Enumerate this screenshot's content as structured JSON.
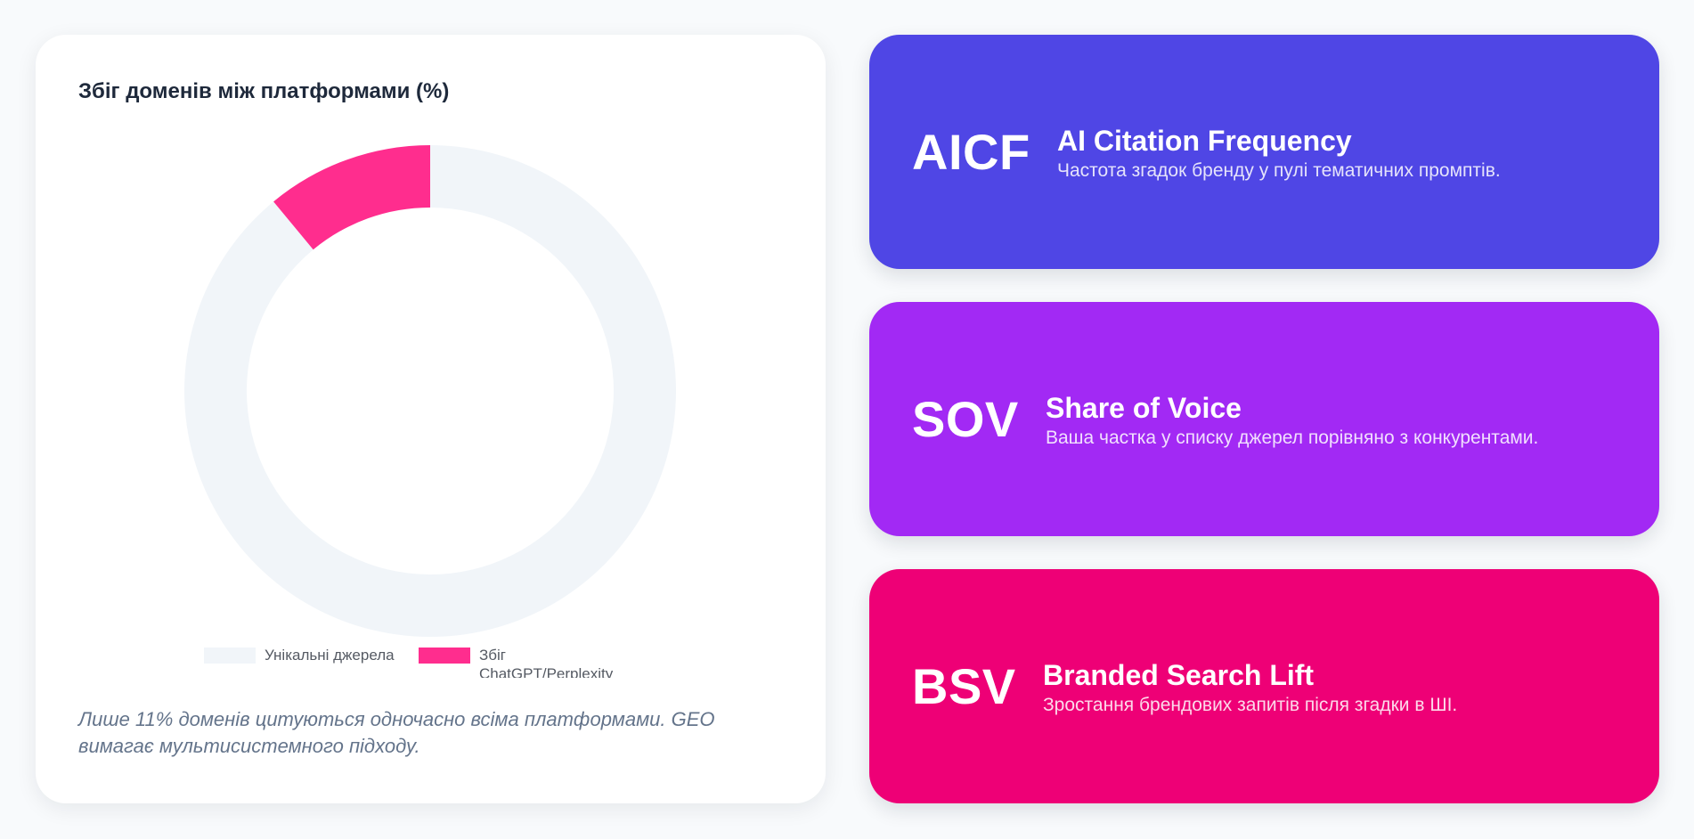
{
  "chart_data": {
    "type": "pie",
    "variant": "doughnut",
    "title": "Збіг доменів між платформами (%)",
    "labels": [
      "Унікальні джерела",
      "Збіг ChatGPT/Perplexity"
    ],
    "values": [
      89,
      11
    ],
    "colors": [
      "#f1f5f9",
      "#ff2d8e"
    ],
    "legend_position": "bottom",
    "unit": "%"
  },
  "chart_card": {
    "footnote": "Лише 11% доменів цитуються одночасно всіма платформами. GEO вимагає мультисистемного підходу."
  },
  "metrics": [
    {
      "abbr": "AICF",
      "name": "AI Citation Frequency",
      "description": "Частота згадок бренду у пулі тематичних промптів.",
      "color": "#4f46e5"
    },
    {
      "abbr": "SOV",
      "name": "Share of Voice",
      "description": "Ваша частка у списку джерел порівняно з конкурентами.",
      "color": "#a229f4"
    },
    {
      "abbr": "BSV",
      "name": "Branded Search Lift",
      "description": "Зростання брендових запитів після згадки в ШІ.",
      "color": "#ee0076"
    }
  ]
}
